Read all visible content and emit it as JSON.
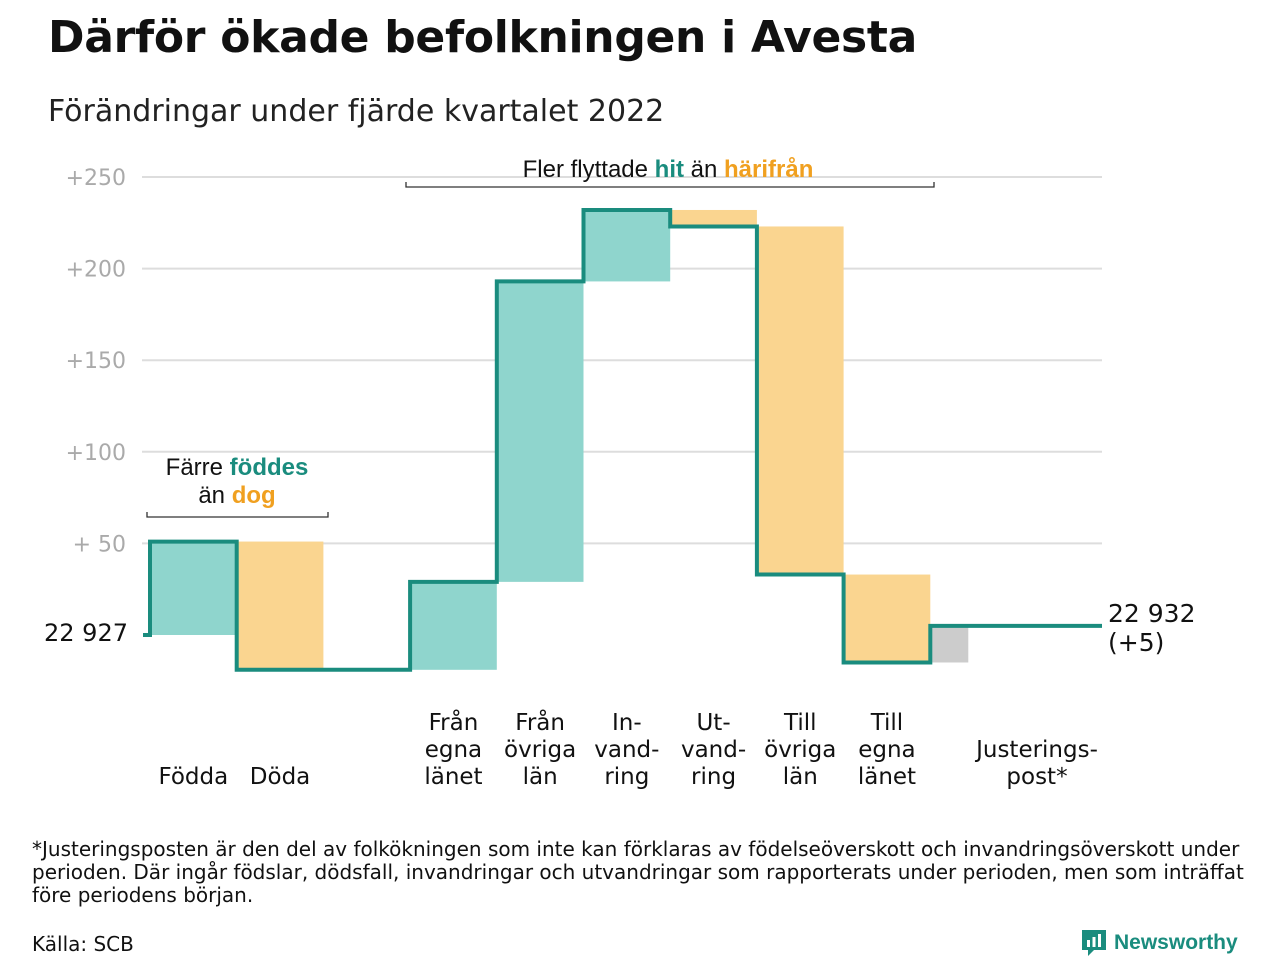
{
  "header": {
    "title": "Därför ökade befolkningen i Avesta",
    "subtitle": "Förändringar under fjärde kvartalet 2022"
  },
  "colors": {
    "increase": "#8fd5cd",
    "decrease": "#fad590",
    "adjustment": "#cccccc",
    "line": "#1a8c7e",
    "accent_teal": "#1a8c7e",
    "accent_orange": "#f0a020",
    "grid": "#dddddd",
    "tick": "#aaaaaa"
  },
  "chart_data": {
    "type": "waterfall",
    "baseline_label": "22 927",
    "end_label": [
      "22 932",
      "(+5)"
    ],
    "y_ticks": [
      {
        "value": 50,
        "label": "+ 50"
      },
      {
        "value": 100,
        "label": "+100"
      },
      {
        "value": 150,
        "label": "+150"
      },
      {
        "value": 200,
        "label": "+200"
      },
      {
        "value": 250,
        "label": "+250"
      }
    ],
    "ylim": [
      -20,
      255
    ],
    "grid": true,
    "steps": [
      {
        "label": [
          "Födda"
        ],
        "start": 0,
        "end": 51,
        "kind": "increase"
      },
      {
        "label": [
          "Döda"
        ],
        "start": 51,
        "end": -19,
        "kind": "decrease"
      },
      {
        "label": [],
        "start": -19,
        "end": -19,
        "kind": "gap"
      },
      {
        "label": [
          "Från",
          "egna",
          "länet"
        ],
        "start": -19,
        "end": 29,
        "kind": "increase"
      },
      {
        "label": [
          "Från",
          "övriga",
          "län"
        ],
        "start": 29,
        "end": 193,
        "kind": "increase"
      },
      {
        "label": [
          "In-",
          "vand-",
          "ring"
        ],
        "start": 193,
        "end": 232,
        "kind": "increase"
      },
      {
        "label": [
          "Ut-",
          "vand-",
          "ring"
        ],
        "start": 232,
        "end": 223,
        "kind": "decrease"
      },
      {
        "label": [
          "Till",
          "övriga",
          "län"
        ],
        "start": 223,
        "end": 33,
        "kind": "decrease"
      },
      {
        "label": [
          "Till",
          "egna",
          "länet"
        ],
        "start": 33,
        "end": -15,
        "kind": "decrease"
      },
      {
        "label": [
          "Justerings-",
          "post*"
        ],
        "start": -15,
        "end": 5,
        "kind": "adjustment"
      }
    ],
    "annotations": [
      {
        "lines": [
          [
            {
              "text": "Färre ",
              "style": "plain"
            },
            {
              "text": "föddes",
              "style": "teal"
            }
          ],
          [
            {
              "text": "än ",
              "style": "plain"
            },
            {
              "text": "dog",
              "style": "orange"
            }
          ]
        ]
      },
      {
        "lines": [
          [
            {
              "text": "Fler flyttade ",
              "style": "plain"
            },
            {
              "text": "hit",
              "style": "teal"
            },
            {
              "text": " än ",
              "style": "plain"
            },
            {
              "text": "härifrån",
              "style": "orange"
            }
          ]
        ]
      }
    ]
  },
  "footnote": "*Justeringsposten är den del av folkökningen som inte kan förklaras av födelseöverskott och invandringsöverskott under perioden. Där ingår födslar, dödsfall, invandringar och utvandringar som rapporterats under perioden, men som inträffat före periodens början.",
  "source": "Källa: SCB",
  "brand": {
    "name": "Newsworthy",
    "icon": "newsworthy-logo-icon"
  }
}
